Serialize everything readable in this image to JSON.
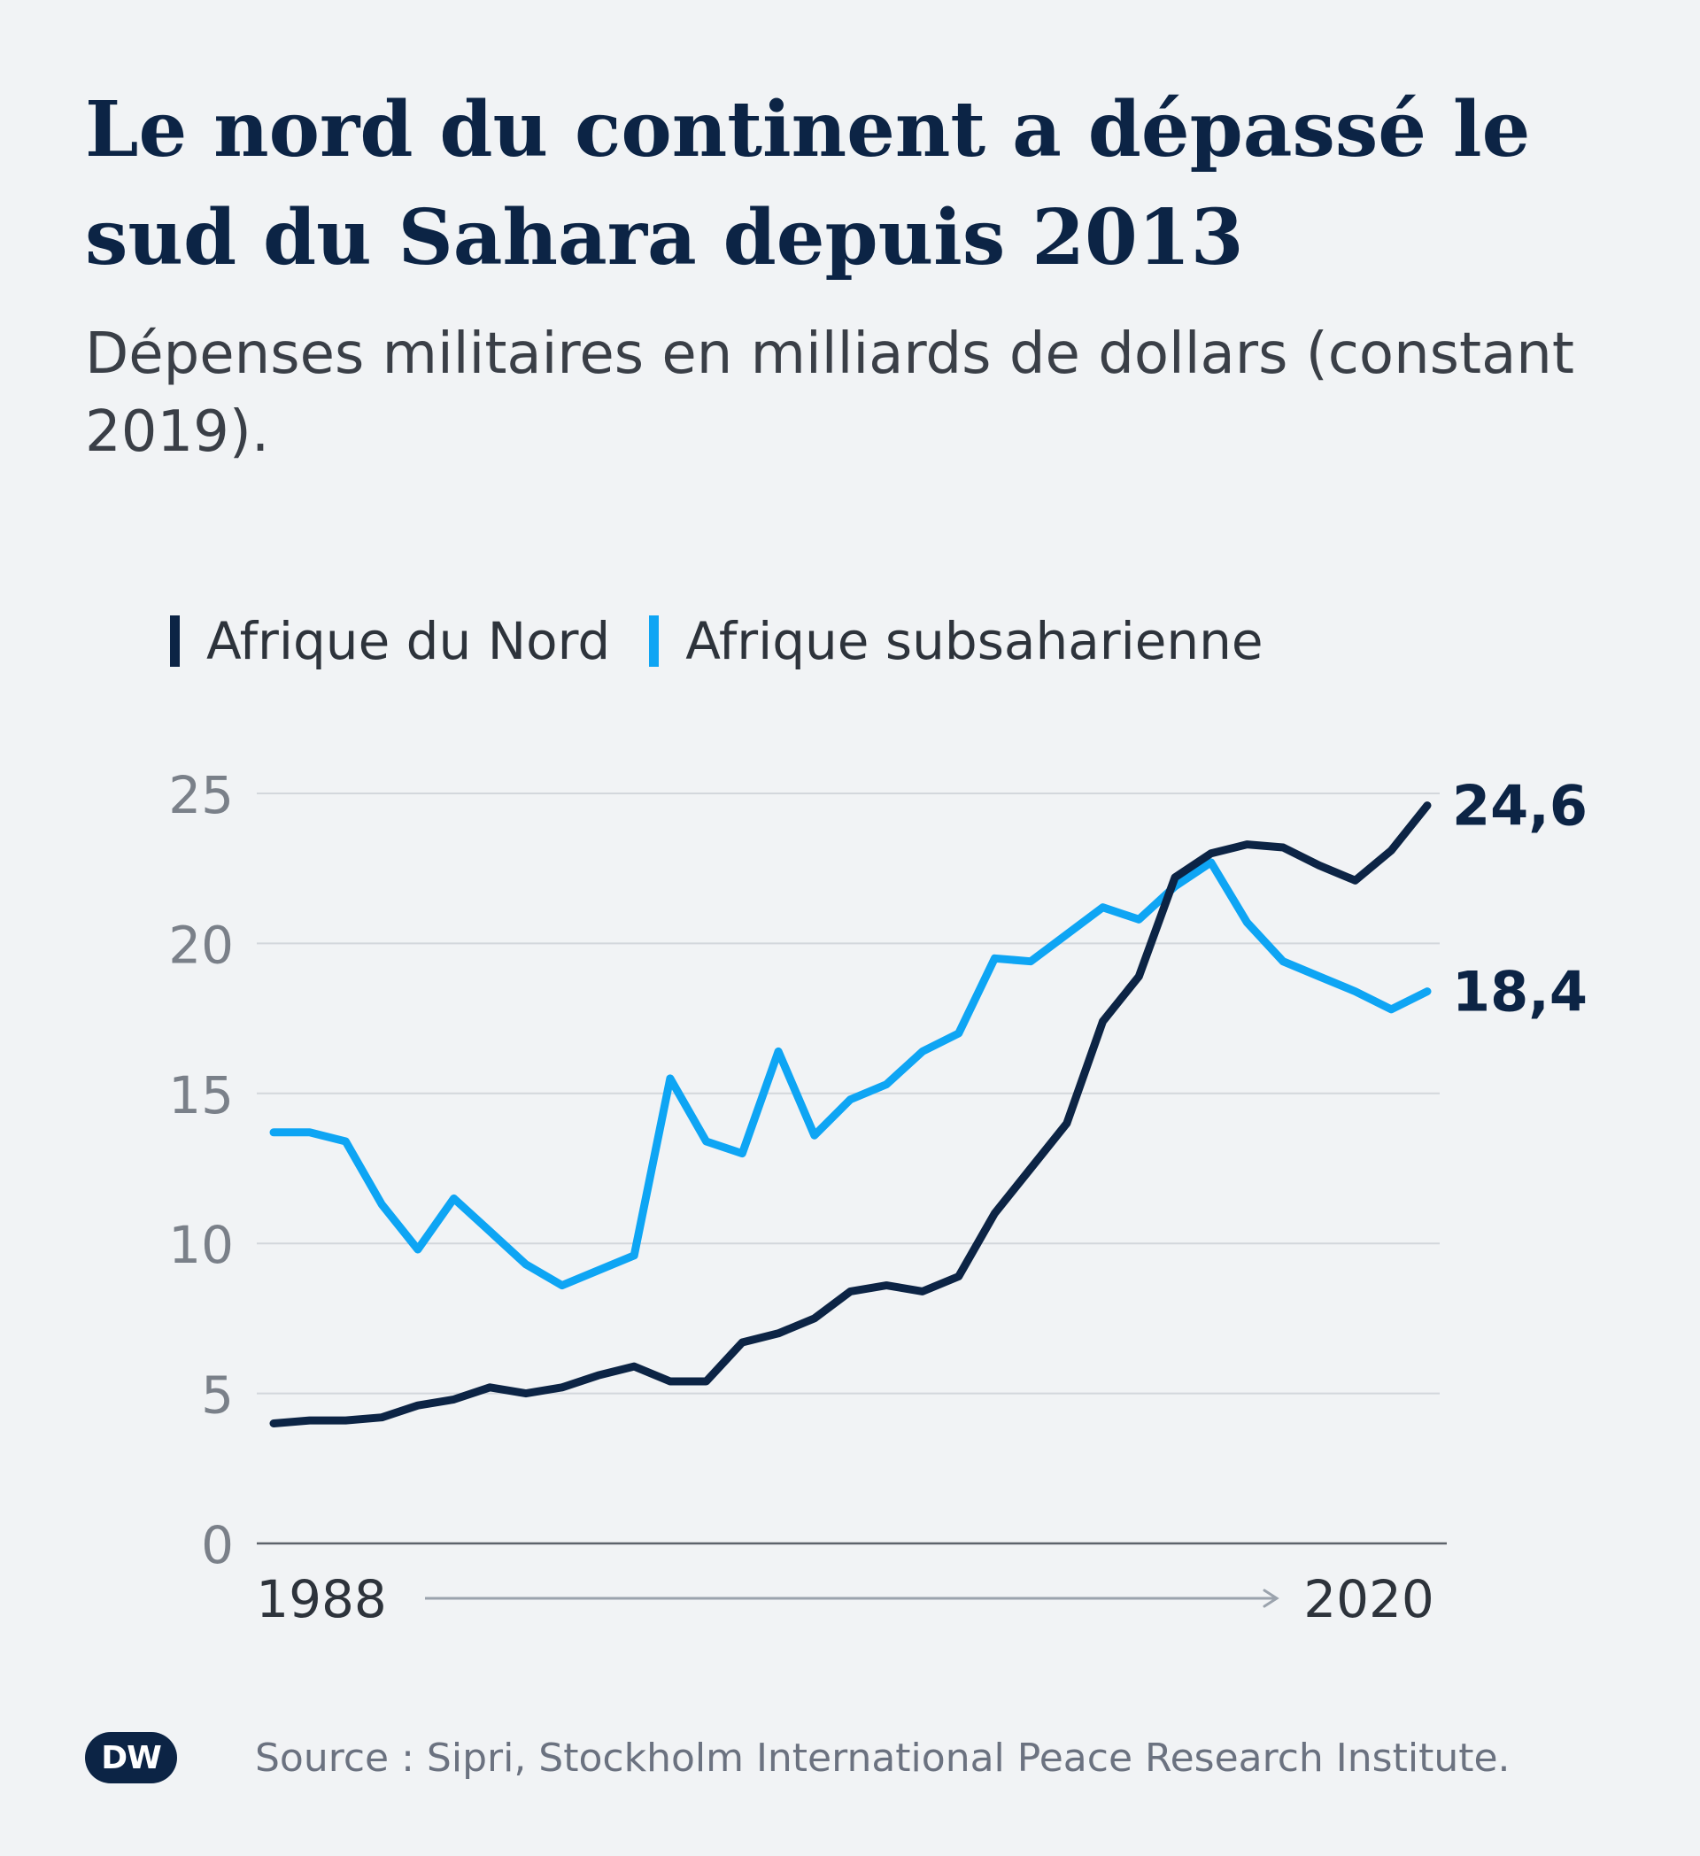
{
  "header": {
    "title": "Le nord du continent a dépassé le sud du Sahara depuis 2013",
    "subtitle": "Dépenses militaires en milliards de dollars (constant 2019)."
  },
  "legend": [
    {
      "label": "Afrique du Nord",
      "color": "#0c2445"
    },
    {
      "label": "Afrique subsaharienne",
      "color": "#0ea5f4"
    }
  ],
  "footer": {
    "logo_text": "DW",
    "source": "Source : Sipri, Stockholm International Peace Research Institute."
  },
  "chart_data": {
    "type": "line",
    "title": "Le nord du continent a dépassé le sud du Sahara depuis 2013",
    "subtitle": "Dépenses militaires en milliards de dollars (constant 2019).",
    "xlabel": "",
    "ylabel": "",
    "x": [
      1988,
      1989,
      1990,
      1991,
      1992,
      1993,
      1994,
      1995,
      1996,
      1997,
      1998,
      1999,
      2000,
      2001,
      2002,
      2003,
      2004,
      2005,
      2006,
      2007,
      2008,
      2009,
      2010,
      2011,
      2012,
      2013,
      2014,
      2015,
      2016,
      2017,
      2018,
      2019,
      2020
    ],
    "xlim": [
      1988,
      2020
    ],
    "x_tick_labels": [
      "1988",
      "2020"
    ],
    "ylim": [
      0,
      25
    ],
    "yticks": [
      0,
      5,
      10,
      15,
      20,
      25
    ],
    "y_tick_labels": [
      "0",
      "5",
      "10",
      "15",
      "20",
      "25"
    ],
    "grid": true,
    "legend_position": "top-left",
    "series": [
      {
        "name": "Afrique du Nord",
        "color": "#0c2445",
        "values": [
          4.0,
          4.1,
          4.1,
          4.2,
          4.6,
          4.8,
          5.2,
          5.0,
          5.2,
          5.6,
          5.9,
          5.4,
          5.4,
          6.7,
          7.0,
          7.5,
          8.4,
          8.6,
          8.4,
          8.9,
          11.0,
          12.5,
          14.0,
          17.4,
          18.9,
          22.2,
          23.0,
          23.3,
          23.2,
          22.6,
          22.1,
          23.1,
          24.6
        ],
        "end_label": "24,6"
      },
      {
        "name": "Afrique subsaharienne",
        "color": "#0ea5f4",
        "values": [
          13.7,
          13.7,
          13.4,
          11.3,
          9.8,
          11.5,
          10.4,
          9.3,
          8.6,
          9.1,
          9.6,
          15.5,
          13.4,
          13.0,
          16.4,
          13.6,
          14.8,
          15.3,
          16.4,
          17.0,
          19.5,
          19.4,
          20.3,
          21.2,
          20.8,
          21.9,
          22.7,
          20.7,
          19.4,
          18.9,
          18.4,
          17.8,
          18.4
        ],
        "end_label": "18,4"
      }
    ]
  }
}
